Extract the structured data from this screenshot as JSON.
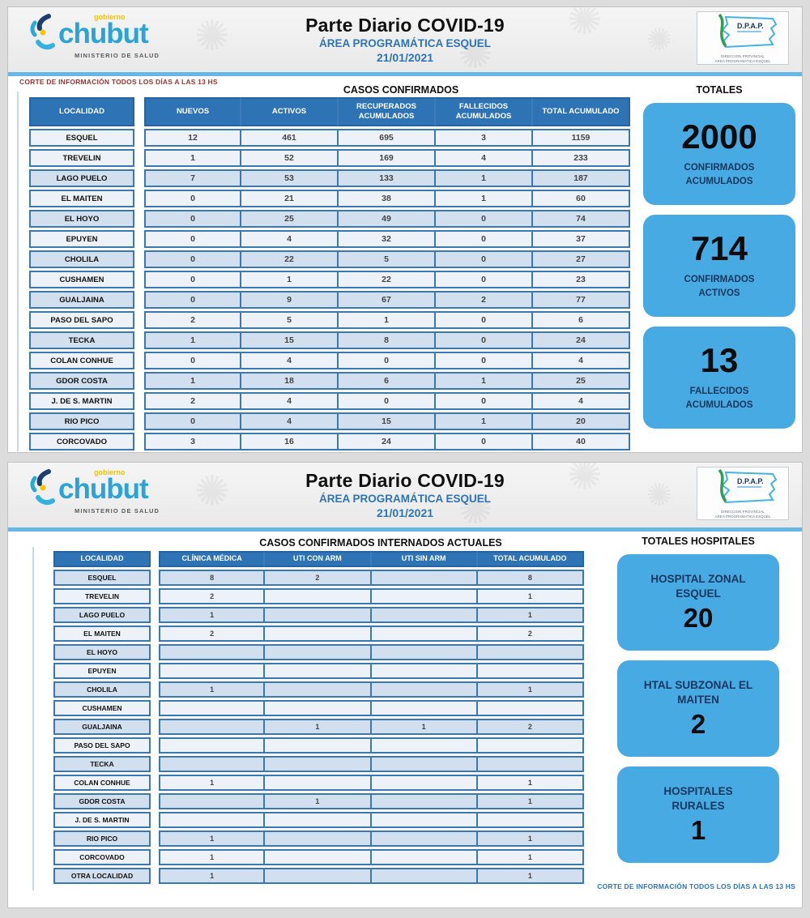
{
  "page1": {
    "brand": {
      "name": "chubut",
      "tagline": "gobierno",
      "ministry": "MINISTERIO DE SALUD"
    },
    "title": "Parte Diario COVID-19",
    "subtitle": "ÁREA PROGRAMÁTICA ESQUEL",
    "date": "21/01/2021",
    "dpap": {
      "acronym": "D.P.A.P.",
      "caption_line1": "DIRECCION PROVINCIAL",
      "caption_line2": "AREA PROGRAMATICA ESQUEL"
    },
    "note": "CORTE DE INFORMACIÓN TODOS LOS DÍAS A LAS 13 HS",
    "section_title": "CASOS CONFIRMADOS",
    "table": {
      "localidad_header": "LOCALIDAD",
      "columns": [
        "NUEVOS",
        "ACTIVOS",
        "RECUPERADOS ACUMULADOS",
        "FALLECIDOS ACUMULADOS",
        "TOTAL ACUMULADO"
      ],
      "rows": [
        {
          "localidad": "ESQUEL",
          "values": [
            "12",
            "461",
            "695",
            "3",
            "1159"
          ]
        },
        {
          "localidad": "TREVELIN",
          "values": [
            "1",
            "52",
            "169",
            "4",
            "233"
          ]
        },
        {
          "localidad": "LAGO PUELO",
          "values": [
            "7",
            "53",
            "133",
            "1",
            "187"
          ]
        },
        {
          "localidad": "EL MAITEN",
          "values": [
            "0",
            "21",
            "38",
            "1",
            "60"
          ]
        },
        {
          "localidad": "EL HOYO",
          "values": [
            "0",
            "25",
            "49",
            "0",
            "74"
          ]
        },
        {
          "localidad": "EPUYEN",
          "values": [
            "0",
            "4",
            "32",
            "0",
            "37"
          ]
        },
        {
          "localidad": "CHOLILA",
          "values": [
            "0",
            "22",
            "5",
            "0",
            "27"
          ]
        },
        {
          "localidad": "CUSHAMEN",
          "values": [
            "0",
            "1",
            "22",
            "0",
            "23"
          ]
        },
        {
          "localidad": "GUALJAINA",
          "values": [
            "0",
            "9",
            "67",
            "2",
            "77"
          ]
        },
        {
          "localidad": "PASO DEL SAPO",
          "values": [
            "2",
            "5",
            "1",
            "0",
            "6"
          ]
        },
        {
          "localidad": "TECKA",
          "values": [
            "1",
            "15",
            "8",
            "0",
            "24"
          ]
        },
        {
          "localidad": "COLAN CONHUE",
          "values": [
            "0",
            "4",
            "0",
            "0",
            "4"
          ]
        },
        {
          "localidad": "GDOR COSTA",
          "values": [
            "1",
            "18",
            "6",
            "1",
            "25"
          ]
        },
        {
          "localidad": "J. DE S. MARTIN",
          "values": [
            "2",
            "4",
            "0",
            "0",
            "4"
          ]
        },
        {
          "localidad": "RIO PICO",
          "values": [
            "0",
            "4",
            "15",
            "1",
            "20"
          ]
        },
        {
          "localidad": "CORCOVADO",
          "values": [
            "3",
            "16",
            "24",
            "0",
            "40"
          ]
        }
      ]
    },
    "totals": {
      "title": "TOTALES",
      "boxes": [
        {
          "value": "2000",
          "label": "CONFIRMADOS ACUMULADOS"
        },
        {
          "value": "714",
          "label": "CONFIRMADOS ACTIVOS"
        },
        {
          "value": "13",
          "label": "FALLECIDOS ACUMULADOS"
        }
      ]
    }
  },
  "page2": {
    "brand": {
      "name": "chubut",
      "tagline": "gobierno",
      "ministry": "MINISTERIO DE SALUD"
    },
    "title": "Parte Diario COVID-19",
    "subtitle": "ÁREA PROGRAMÁTICA ESQUEL",
    "date": "21/01/2021",
    "dpap": {
      "acronym": "D.P.A.P.",
      "caption_line1": "DIRECCION PROVINCIAL",
      "caption_line2": "AREA PROGRAMATICA ESQUEL"
    },
    "section_title": "CASOS CONFIRMADOS INTERNADOS ACTUALES",
    "table": {
      "localidad_header": "LOCALIDAD",
      "columns": [
        "CLÍNICA MÉDICA",
        "UTI CON ARM",
        "UTI SIN ARM",
        "TOTAL ACUMULADO"
      ],
      "rows": [
        {
          "localidad": "ESQUEL",
          "values": [
            "8",
            "2",
            "",
            "8"
          ]
        },
        {
          "localidad": "TREVELIN",
          "values": [
            "2",
            "",
            "",
            "1"
          ]
        },
        {
          "localidad": "LAGO PUELO",
          "values": [
            "1",
            "",
            "",
            "1"
          ]
        },
        {
          "localidad": "EL MAITEN",
          "values": [
            "2",
            "",
            "",
            "2"
          ]
        },
        {
          "localidad": "EL HOYO",
          "values": [
            "",
            "",
            "",
            ""
          ]
        },
        {
          "localidad": "EPUYEN",
          "values": [
            "",
            "",
            "",
            ""
          ]
        },
        {
          "localidad": "CHOLILA",
          "values": [
            "1",
            "",
            "",
            "1"
          ]
        },
        {
          "localidad": "CUSHAMEN",
          "values": [
            "",
            "",
            "",
            ""
          ]
        },
        {
          "localidad": "GUALJAINA",
          "values": [
            "",
            "1",
            "1",
            "2"
          ]
        },
        {
          "localidad": "PASO DEL SAPO",
          "values": [
            "",
            "",
            "",
            ""
          ]
        },
        {
          "localidad": "TECKA",
          "values": [
            "",
            "",
            "",
            ""
          ]
        },
        {
          "localidad": "COLAN CONHUE",
          "values": [
            "1",
            "",
            "",
            "1"
          ]
        },
        {
          "localidad": "GDOR COSTA",
          "values": [
            "",
            "1",
            "",
            "1"
          ]
        },
        {
          "localidad": "J. DE S. MARTIN",
          "values": [
            "",
            "",
            "",
            ""
          ]
        },
        {
          "localidad": "RIO PICO",
          "values": [
            "1",
            "",
            "",
            "1"
          ]
        },
        {
          "localidad": "CORCOVADO",
          "values": [
            "1",
            "",
            "",
            "1"
          ]
        },
        {
          "localidad": "OTRA LOCALIDAD",
          "values": [
            "1",
            "",
            "",
            "1"
          ]
        }
      ]
    },
    "totals": {
      "title": "TOTALES HOSPITALES",
      "boxes": [
        {
          "label": "HOSPITAL ZONAL ESQUEL",
          "value": "20"
        },
        {
          "label": "HTAL SUBZONAL EL MAITEN",
          "value": "2"
        },
        {
          "label": "HOSPITALES RURALES",
          "value": "1"
        }
      ]
    },
    "note": "CORTE DE INFORMACIÓN TODOS LOS DÍAS A LAS 13 HS"
  },
  "colors": {
    "table_header_blue": "#2e74b5",
    "table_border_blue": "#3c78b0",
    "row_band_light": "#edf2f9",
    "row_band_dark": "#d2dfef",
    "totals_box_blue": "#47aae3",
    "totals_label_navy": "#17375e",
    "header_divider_blue": "#66b7e6",
    "note_red": "#943634",
    "note_blue": "#2e74b5",
    "brand_blue": "#2ba3d6",
    "brand_yellow": "#f2c300",
    "dpap_green": "#2f9e53"
  }
}
